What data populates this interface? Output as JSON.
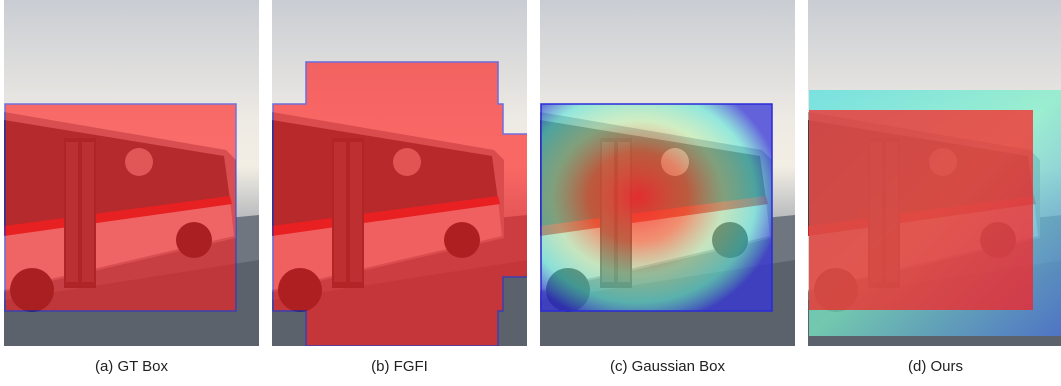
{
  "figure": {
    "panels": [
      {
        "caption": "(a) GT Box",
        "method": "ground-truth box mask"
      },
      {
        "caption": "(b) FGFI",
        "method": "fine-grained feature imitation mask"
      },
      {
        "caption": "(c) Gaussian Box",
        "method": "gaussian heatmap mask"
      },
      {
        "caption": "(d) Ours",
        "method": "box mask with soft border"
      }
    ],
    "colors": {
      "mask_red": "#ff2020",
      "box_outline": "#2a2ad8",
      "gaussian_edge": "#3a3ae0",
      "gaussian_mid": "#6ff0d0",
      "sky": "#e6e7ea",
      "road": "#6b7280"
    }
  }
}
